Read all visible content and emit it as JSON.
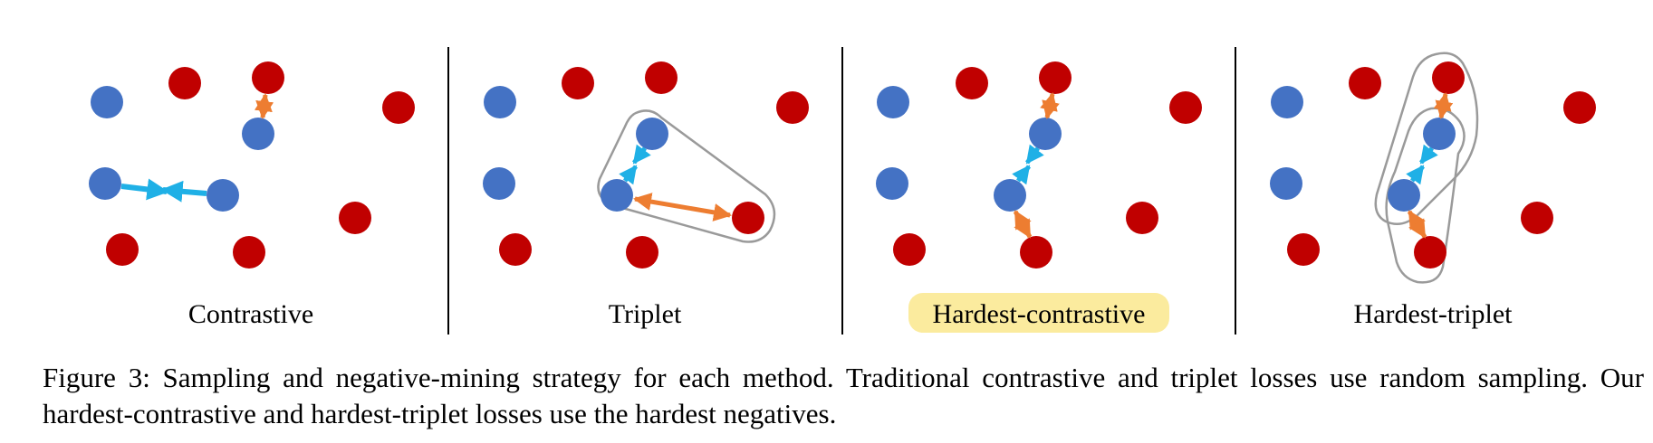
{
  "figure": {
    "panels": [
      {
        "label": "Contrastive",
        "highlighted": false
      },
      {
        "label": "Triplet",
        "highlighted": false
      },
      {
        "label": "Hardest-contrastive",
        "highlighted": true
      },
      {
        "label": "Hardest-triplet",
        "highlighted": false
      }
    ],
    "colors": {
      "positive_point": "#4472c4",
      "negative_point": "#c00000",
      "positive_pair_arrow": "#1fb0e6",
      "negative_pair_arrow": "#ed7d31",
      "triplet_outline": "#9a9a9a",
      "label_highlight": "#fbeb9e",
      "divider": "#000000"
    }
  },
  "caption": {
    "text": "Figure 3:  Sampling and negative-mining strategy for each method.  Traditional contrastive and triplet losses use random sampling. Our hardest-contrastive and hardest-triplet losses use the hardest negatives."
  }
}
